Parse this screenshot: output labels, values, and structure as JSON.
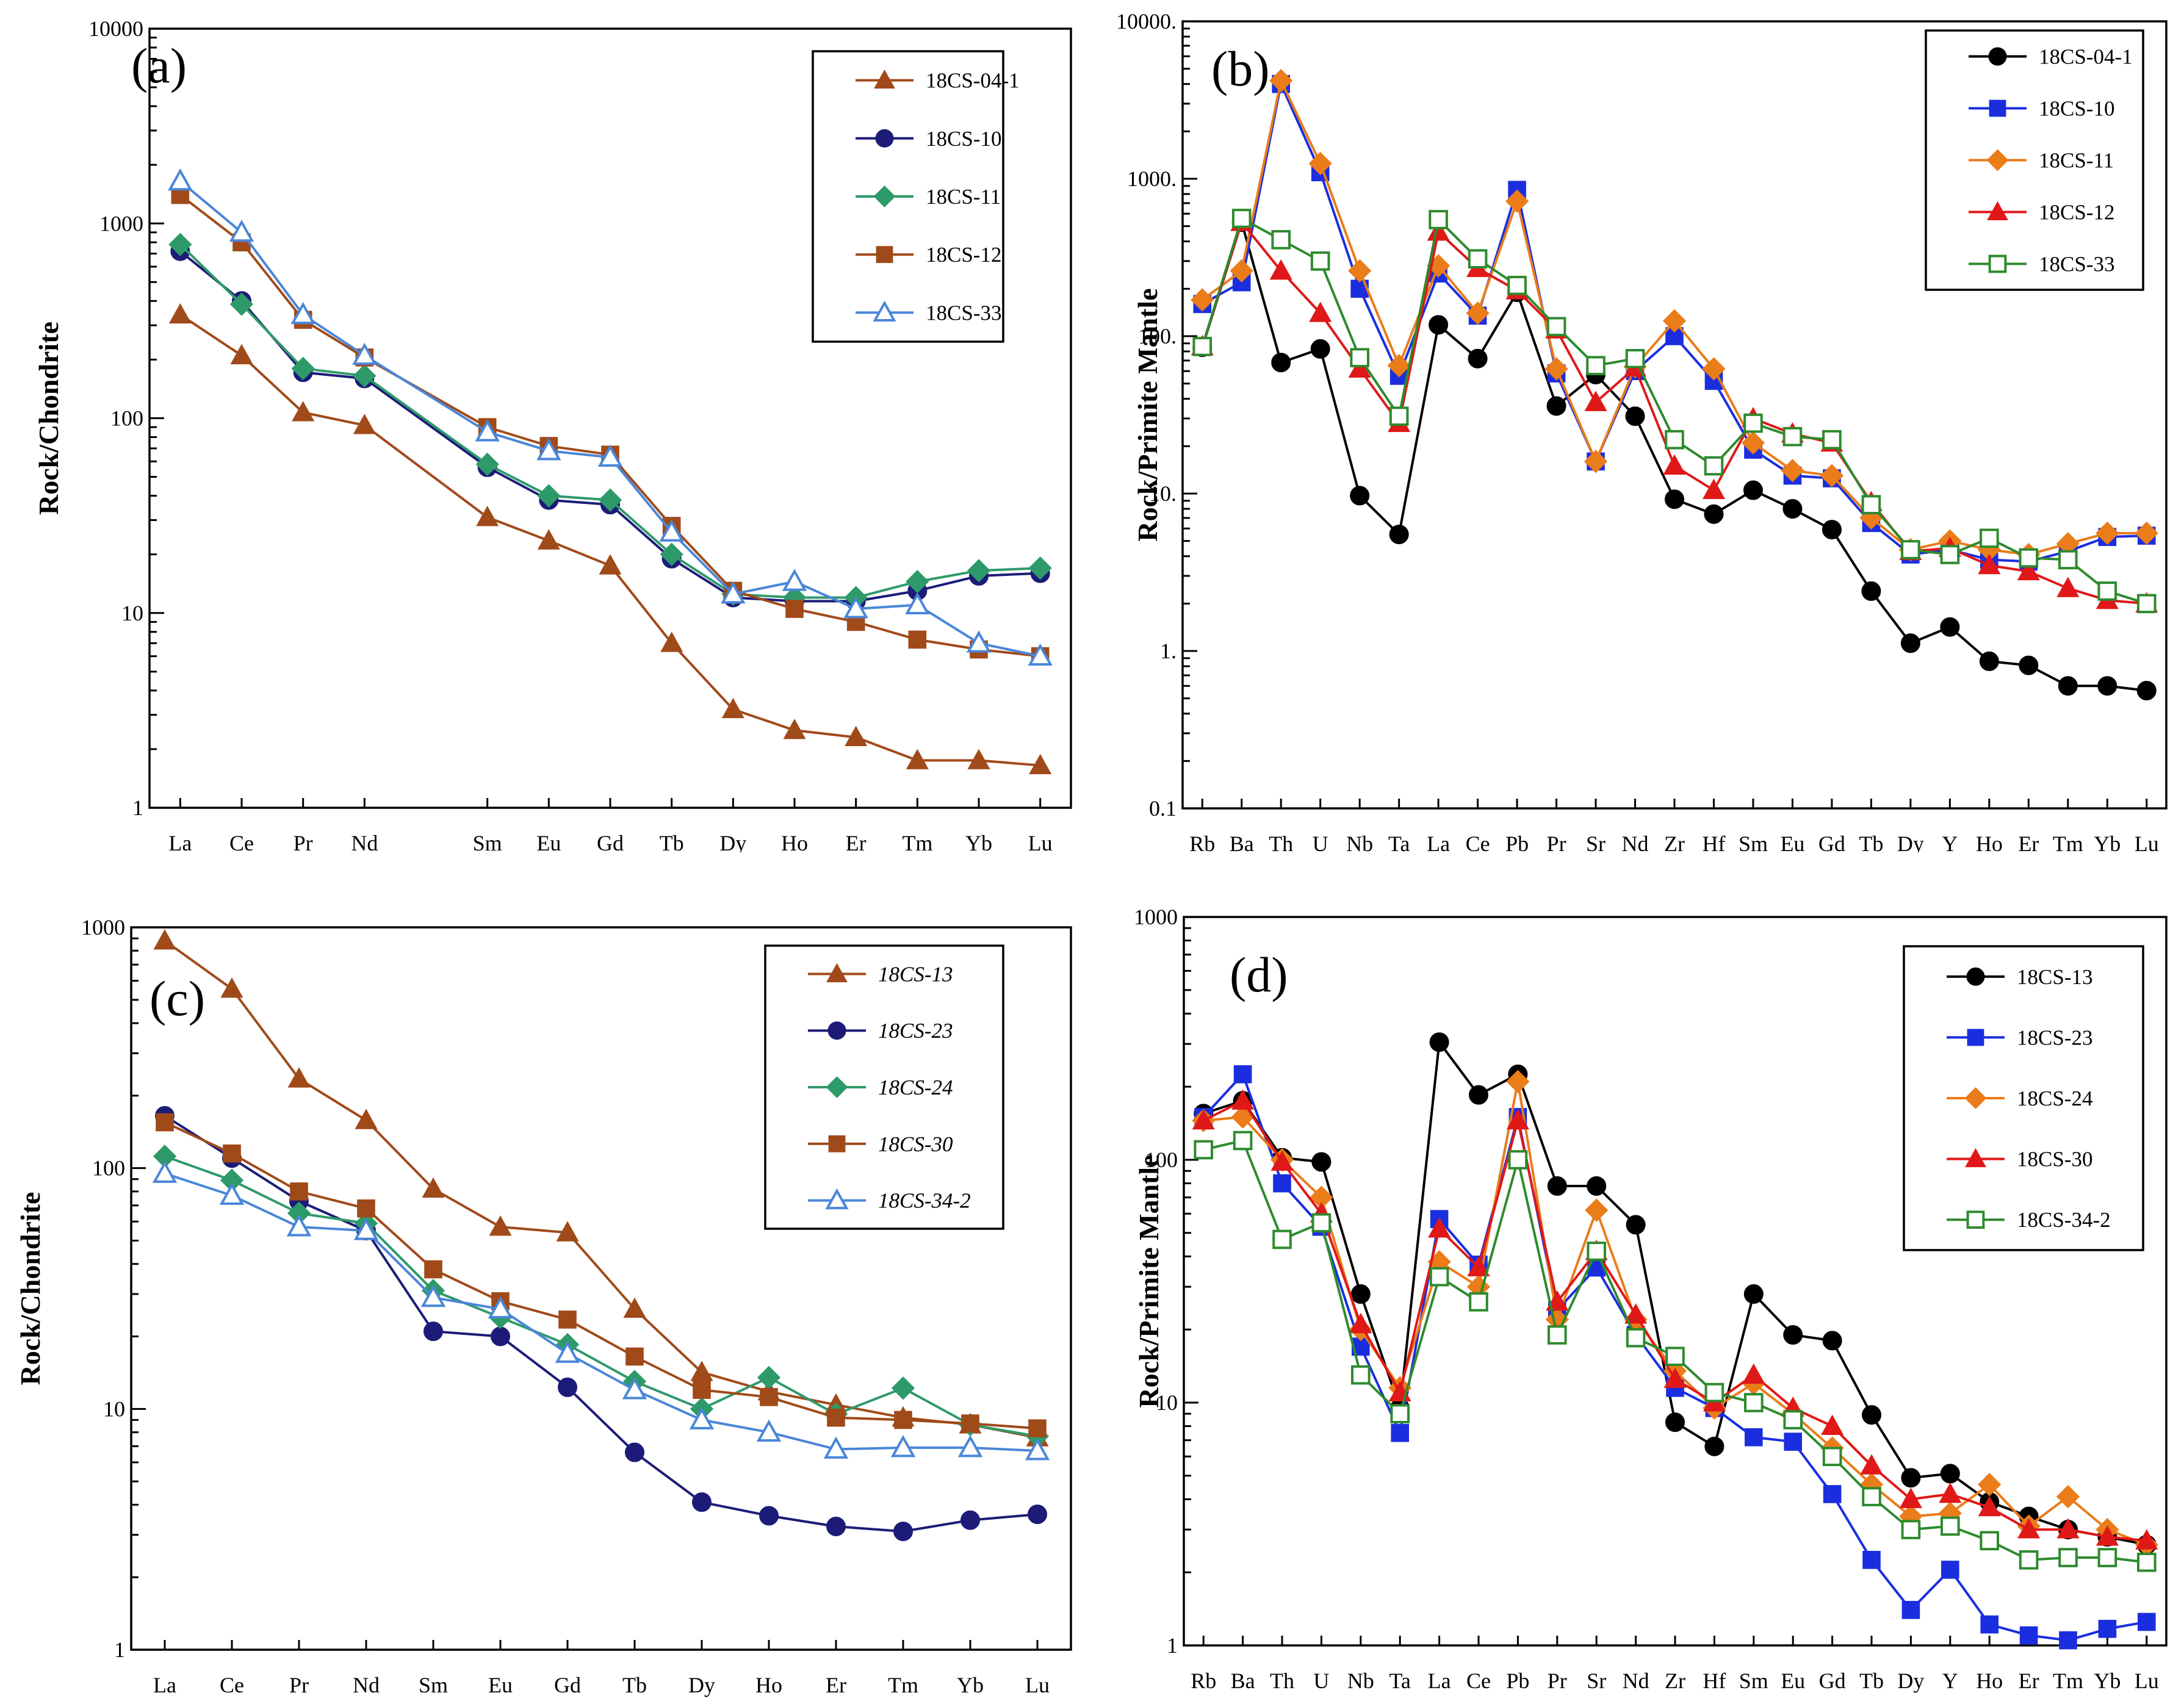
{
  "chart_data": [
    {
      "id": "a",
      "type": "line",
      "panel_label": "(a)",
      "ylabel": "Rock/Chondrite",
      "yscale": "log",
      "ylim": [
        1,
        10000
      ],
      "yticks": [
        1,
        10,
        100,
        1000,
        10000
      ],
      "ytick_labels": [
        "1",
        "10",
        "100",
        "1000",
        "10000"
      ],
      "categories": [
        "La",
        "Ce",
        "Pr",
        "Nd",
        "Sm",
        "Eu",
        "Gd",
        "Tb",
        "Dy",
        "Ho",
        "Er",
        "Tm",
        "Yb",
        "Lu"
      ],
      "category_slots": [
        0,
        1,
        2,
        3,
        5,
        6,
        7,
        8,
        9,
        10,
        11,
        12,
        13,
        14
      ],
      "slot_count": 15,
      "legend_italic": false,
      "series": [
        {
          "name": "18CS-04-1",
          "color": "#a04a1a",
          "marker": "triangle",
          "filled": true,
          "values": [
            340,
            210,
            107,
            92,
            31,
            23.5,
            17.5,
            7,
            3.2,
            2.5,
            2.3,
            1.75,
            1.75,
            1.65
          ]
        },
        {
          "name": "18CS-10",
          "color": "#1c1c78",
          "marker": "circle",
          "filled": true,
          "values": [
            720,
            400,
            172,
            160,
            56,
            38,
            36,
            19,
            12,
            11.5,
            11.5,
            13,
            15.5,
            16
          ]
        },
        {
          "name": "18CS-11",
          "color": "#2e9a6a",
          "marker": "diamond",
          "filled": true,
          "values": [
            780,
            385,
            180,
            165,
            58,
            40,
            38,
            20,
            12.5,
            12,
            12,
            14.5,
            16.5,
            17
          ]
        },
        {
          "name": "18CS-12",
          "color": "#a04a1a",
          "marker": "square",
          "filled": true,
          "values": [
            1400,
            800,
            320,
            205,
            90,
            72,
            65,
            28,
            13,
            10.5,
            9,
            7.3,
            6.5,
            6
          ]
        },
        {
          "name": "18CS-33",
          "color": "#4a86d8",
          "marker": "triangle",
          "filled": false,
          "values": [
            1650,
            900,
            340,
            210,
            85,
            68,
            63,
            26,
            12.5,
            14.5,
            10.5,
            11,
            7,
            6
          ]
        }
      ]
    },
    {
      "id": "b",
      "type": "line",
      "panel_label": "(b)",
      "ylabel": "Rock/Primite Mantle",
      "yscale": "log",
      "ylim": [
        0.1,
        10000
      ],
      "yticks": [
        0.1,
        1,
        10,
        100,
        1000,
        10000
      ],
      "ytick_labels": [
        "0.1",
        "1.",
        "10.",
        "100.",
        "1000.",
        "10000."
      ],
      "categories": [
        "Rb",
        "Ba",
        "Th",
        "U",
        "Nb",
        "Ta",
        "La",
        "Ce",
        "Pb",
        "Pr",
        "Sr",
        "Nd",
        "Zr",
        "Hf",
        "Sm",
        "Eu",
        "Gd",
        "Tb",
        "Dy",
        "Y",
        "Ho",
        "Er",
        "Tm",
        "Yb",
        "Lu"
      ],
      "legend_italic": false,
      "series": [
        {
          "name": "18CS-04-1",
          "color": "#000000",
          "marker": "circle",
          "filled": true,
          "values": [
            85,
            530,
            68,
            83,
            9.7,
            5.5,
            118,
            72,
            190,
            36,
            57,
            31,
            9.2,
            7.4,
            10.5,
            8,
            5.9,
            2.4,
            1.12,
            1.42,
            0.86,
            0.81,
            0.6,
            0.6,
            0.56
          ]
        },
        {
          "name": "18CS-10",
          "color": "#1a2ee0",
          "marker": "square",
          "filled": true,
          "values": [
            160,
            220,
            4000,
            1100,
            200,
            56,
            250,
            135,
            850,
            58,
            16,
            60,
            100,
            52,
            19,
            13,
            12.5,
            6.5,
            4.1,
            4.4,
            3.8,
            3.7,
            4.3,
            5.3,
            5.4
          ]
        },
        {
          "name": "18CS-11",
          "color": "#ea7c1a",
          "marker": "diamond",
          "filled": true,
          "values": [
            170,
            260,
            4200,
            1250,
            260,
            65,
            280,
            140,
            720,
            62,
            16,
            64,
            125,
            62,
            21,
            14,
            13,
            7,
            4.4,
            5,
            4.4,
            4.1,
            4.8,
            5.6,
            5.6
          ]
        },
        {
          "name": "18CS-12",
          "color": "#e01818",
          "marker": "triangle",
          "filled": true,
          "values": [
            86,
            530,
            260,
            140,
            62,
            28,
            460,
            270,
            195,
            110,
            38,
            63,
            15,
            10.5,
            30,
            24,
            21,
            8.8,
            4.3,
            4.5,
            3.5,
            3.2,
            2.5,
            2.1,
            2
          ]
        },
        {
          "name": "18CS-33",
          "color": "#2e8a2e",
          "marker": "square",
          "filled": false,
          "values": [
            86,
            560,
            410,
            300,
            73,
            31,
            550,
            310,
            210,
            115,
            65,
            72,
            22,
            15,
            28,
            23,
            22,
            8.5,
            4.4,
            4.1,
            5.2,
            3.9,
            3.8,
            2.4,
            2
          ]
        }
      ]
    },
    {
      "id": "c",
      "type": "line",
      "panel_label": "(c)",
      "ylabel": "Rock/Chondrite",
      "yscale": "log",
      "ylim": [
        1,
        1000
      ],
      "yticks": [
        1,
        10,
        100,
        1000
      ],
      "ytick_labels": [
        "1",
        "10",
        "100",
        "1000"
      ],
      "categories": [
        "La",
        "Ce",
        "Pr",
        "Nd",
        "Sm",
        "Eu",
        "Gd",
        "Tb",
        "Dy",
        "Ho",
        "Er",
        "Tm",
        "Yb",
        "Lu"
      ],
      "legend_italic": true,
      "series": [
        {
          "name": "18CS-13",
          "color": "#a04a1a",
          "marker": "triangle",
          "filled": true,
          "values": [
            880,
            555,
            235,
            158,
            82,
            57,
            54,
            26,
            14.2,
            11.8,
            10.4,
            9.2,
            8.6,
            7.6
          ]
        },
        {
          "name": "18CS-23",
          "color": "#1c1c78",
          "marker": "circle",
          "filled": true,
          "values": [
            165,
            110,
            73,
            55,
            21,
            20,
            12.3,
            6.6,
            4.1,
            3.6,
            3.25,
            3.1,
            3.45,
            3.65
          ]
        },
        {
          "name": "18CS-24",
          "color": "#2e9a6a",
          "marker": "diamond",
          "filled": true,
          "values": [
            112,
            89,
            65,
            59,
            31,
            24,
            18.5,
            13,
            10,
            13.5,
            9.5,
            12.2,
            8.6,
            7.7
          ]
        },
        {
          "name": "18CS-30",
          "color": "#a04a1a",
          "marker": "square",
          "filled": true,
          "values": [
            155,
            115,
            80,
            68,
            38,
            28,
            23.5,
            16.5,
            12,
            11.2,
            9.2,
            9,
            8.7,
            8.3
          ]
        },
        {
          "name": "18CS-34-2",
          "color": "#4a86d8",
          "marker": "triangle",
          "filled": false,
          "values": [
            95,
            77,
            57,
            55,
            29,
            26,
            17,
            12,
            9,
            8,
            6.8,
            6.9,
            6.9,
            6.7
          ]
        }
      ]
    },
    {
      "id": "d",
      "type": "line",
      "panel_label": "(d)",
      "ylabel": "Rock/Primite Mantle",
      "yscale": "log",
      "ylim": [
        1,
        1000
      ],
      "yticks": [
        1,
        10,
        100,
        1000
      ],
      "ytick_labels": [
        "1",
        "10",
        "100",
        "1000"
      ],
      "categories": [
        "Rb",
        "Ba",
        "Th",
        "U",
        "Nb",
        "Ta",
        "La",
        "Ce",
        "Pb",
        "Pr",
        "Sr",
        "Nd",
        "Zr",
        "Hf",
        "Sm",
        "Eu",
        "Gd",
        "Tb",
        "Dy",
        "Y",
        "Ho",
        "Er",
        "Tm",
        "Yb",
        "Lu"
      ],
      "legend_italic": false,
      "series": [
        {
          "name": "18CS-13",
          "color": "#000000",
          "marker": "circle",
          "filled": true,
          "values": [
            155,
            175,
            102,
            98,
            28,
            9.5,
            305,
            185,
            225,
            78,
            78,
            54,
            8.3,
            6.6,
            28,
            19,
            18,
            8.9,
            4.9,
            5.1,
            3.9,
            3.4,
            3,
            2.8,
            2.6
          ]
        },
        {
          "name": "18CS-23",
          "color": "#1a2ee0",
          "marker": "square",
          "filled": true,
          "values": [
            150,
            225,
            80,
            53,
            17,
            7.5,
            57,
            37,
            150,
            24,
            36,
            19,
            11.5,
            9.5,
            7.2,
            6.9,
            4.2,
            2.25,
            1.4,
            2.05,
            1.22,
            1.1,
            1.05,
            1.17,
            1.25
          ]
        },
        {
          "name": "18CS-24",
          "color": "#ea7c1a",
          "marker": "diamond",
          "filled": true,
          "values": [
            145,
            150,
            100,
            70,
            20,
            11.5,
            38,
            30,
            210,
            22,
            62,
            22,
            13.5,
            9.5,
            12,
            9,
            6.5,
            4.6,
            3.4,
            3.5,
            4.6,
            3.1,
            4.1,
            3,
            2.6
          ]
        },
        {
          "name": "18CS-30",
          "color": "#e01818",
          "marker": "triangle",
          "filled": true,
          "values": [
            145,
            175,
            98,
            60,
            21,
            11,
            52,
            36,
            145,
            26,
            42,
            23,
            12.5,
            10,
            13,
            9.5,
            8,
            5.5,
            4,
            4.2,
            3.7,
            3,
            3,
            2.8,
            2.7
          ]
        },
        {
          "name": "18CS-34-2",
          "color": "#2e8a2e",
          "marker": "square",
          "filled": false,
          "values": [
            110,
            120,
            47,
            55,
            13,
            9,
            33,
            26,
            100,
            19,
            42,
            18.5,
            15.5,
            11,
            10,
            8.5,
            6,
            4.1,
            3,
            3.1,
            2.7,
            2.25,
            2.3,
            2.3,
            2.2
          ]
        }
      ]
    }
  ]
}
